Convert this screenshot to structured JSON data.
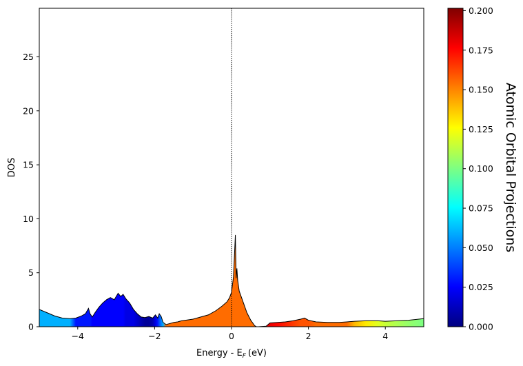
{
  "chart_data": {
    "type": "area",
    "xlabel": "Energy - E",
    "xlabel_sub": "F",
    "xlabel_unit": "(eV)",
    "ylabel": "DOS",
    "xlim": [
      -5,
      5
    ],
    "ylim": [
      0,
      29.5
    ],
    "grid": false,
    "fermi_line_x": 0,
    "x_ticks": [
      -4,
      -2,
      0,
      2,
      4
    ],
    "x_tick_labels": [
      "−4",
      "−2",
      "0",
      "2",
      "4"
    ],
    "y_ticks": [
      0,
      5,
      10,
      15,
      20,
      25
    ],
    "y_tick_labels": [
      "0",
      "5",
      "10",
      "15",
      "20",
      "25"
    ],
    "series": [
      {
        "x": [
          -5.0,
          -4.8,
          -4.6,
          -4.4,
          -4.2,
          -4.05,
          -3.9,
          -3.8,
          -3.72,
          -3.68,
          -3.62,
          -3.55,
          -3.45,
          -3.35,
          -3.25,
          -3.15,
          -3.05,
          -2.95,
          -2.88,
          -2.82,
          -2.75,
          -2.65,
          -2.55,
          -2.45,
          -2.35,
          -2.25,
          -2.15,
          -2.05,
          -1.98,
          -1.92,
          -1.88,
          -1.83,
          -1.78,
          -1.7,
          -1.6,
          -1.5,
          -1.4,
          -1.3,
          -1.2,
          -1.0,
          -0.8,
          -0.6,
          -0.4,
          -0.25,
          -0.12,
          -0.05,
          0.0,
          0.05,
          0.1,
          0.12,
          0.14,
          0.16,
          0.2,
          0.3,
          0.4,
          0.5,
          0.6,
          0.65,
          0.7,
          0.9,
          1.0,
          1.2,
          1.4,
          1.6,
          1.8,
          1.9,
          2.0,
          2.2,
          2.5,
          2.8,
          3.0,
          3.2,
          3.5,
          3.8,
          4.0,
          4.3,
          4.6,
          5.0
        ],
        "y": [
          1.6,
          1.3,
          1.0,
          0.8,
          0.75,
          0.8,
          1.0,
          1.2,
          1.7,
          1.2,
          0.9,
          1.3,
          1.8,
          2.2,
          2.5,
          2.7,
          2.5,
          3.1,
          2.8,
          3.0,
          2.6,
          2.2,
          1.6,
          1.2,
          0.9,
          0.85,
          0.95,
          0.8,
          1.1,
          0.8,
          1.2,
          0.95,
          0.4,
          0.2,
          0.3,
          0.4,
          0.45,
          0.55,
          0.6,
          0.7,
          0.9,
          1.1,
          1.5,
          1.9,
          2.3,
          2.7,
          3.2,
          4.6,
          8.5,
          4.5,
          5.4,
          4.3,
          3.3,
          2.3,
          1.3,
          0.6,
          0.1,
          0.0,
          0.0,
          0.05,
          0.35,
          0.4,
          0.45,
          0.55,
          0.7,
          0.8,
          0.6,
          0.45,
          0.4,
          0.4,
          0.45,
          0.5,
          0.55,
          0.55,
          0.5,
          0.55,
          0.6,
          0.75
        ],
        "projection": [
          0.06,
          0.06,
          0.06,
          0.06,
          0.06,
          0.03,
          0.03,
          0.03,
          0.03,
          0.03,
          0.025,
          0.025,
          0.025,
          0.025,
          0.025,
          0.025,
          0.025,
          0.025,
          0.025,
          0.025,
          0.02,
          0.02,
          0.02,
          0.015,
          0.01,
          0.005,
          0.005,
          0.01,
          0.02,
          0.03,
          0.04,
          0.05,
          0.06,
          0.155,
          0.155,
          0.155,
          0.155,
          0.155,
          0.155,
          0.155,
          0.155,
          0.155,
          0.155,
          0.155,
          0.155,
          0.155,
          0.155,
          0.155,
          0.155,
          0.155,
          0.155,
          0.155,
          0.155,
          0.155,
          0.155,
          0.155,
          0.155,
          0.155,
          0.155,
          0.18,
          0.18,
          0.175,
          0.17,
          0.165,
          0.16,
          0.16,
          0.16,
          0.155,
          0.155,
          0.155,
          0.155,
          0.14,
          0.13,
          0.12,
          0.115,
          0.11,
          0.105,
          0.1
        ]
      }
    ],
    "colorbar": {
      "label": "Atomic Orbital Projections",
      "min": 0.0,
      "max": 0.2015,
      "colormap": "jet",
      "ticks": [
        0.0,
        0.025,
        0.05,
        0.075,
        0.1,
        0.125,
        0.15,
        0.175,
        0.2
      ],
      "tick_labels": [
        "0.000",
        "0.025",
        "0.050",
        "0.075",
        "0.100",
        "0.125",
        "0.150",
        "0.175",
        "0.200"
      ],
      "position": "right"
    }
  }
}
